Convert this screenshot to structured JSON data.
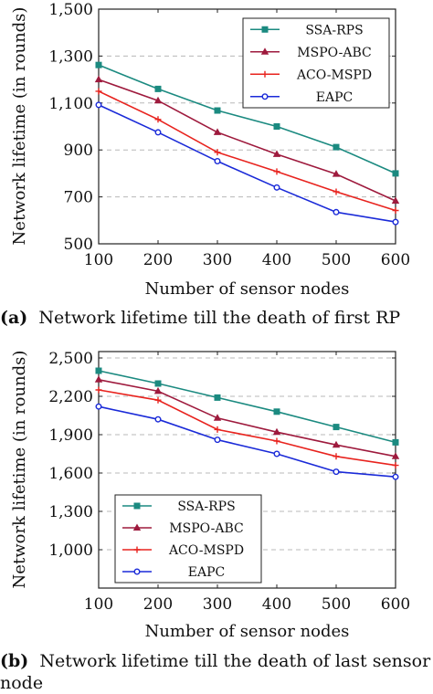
{
  "chart_data": [
    {
      "type": "line",
      "xlabel": "Number of sensor nodes",
      "ylabel": "Network lifetime (in rounds)",
      "x": [
        100,
        200,
        300,
        400,
        500,
        600
      ],
      "xticks": [
        "100",
        "200",
        "300",
        "400",
        "500",
        "600"
      ],
      "yticks": [
        {
          "value": 500,
          "label": "500"
        },
        {
          "value": 700,
          "label": "700"
        },
        {
          "value": 900,
          "label": "900"
        },
        {
          "value": 1100,
          "label": "1,100"
        },
        {
          "value": 1300,
          "label": "1,300"
        },
        {
          "value": 1500,
          "label": "1,500"
        }
      ],
      "xlim": [
        100,
        600
      ],
      "ylim": [
        500,
        1500
      ],
      "grid": "horizontal dashed",
      "legend_position": "top-right",
      "series": [
        {
          "name": "SSA-RPS",
          "color": "#1b8a80",
          "marker": "square",
          "values": [
            1262,
            1160,
            1068,
            1000,
            912,
            800
          ]
        },
        {
          "name": "MSPO-ABC",
          "color": "#9e1a3d",
          "marker": "triangle",
          "values": [
            1200,
            1110,
            975,
            882,
            797,
            683
          ]
        },
        {
          "name": "ACO-MSPD",
          "color": "#e8231e",
          "marker": "plus",
          "values": [
            1150,
            1030,
            890,
            808,
            722,
            642
          ]
        },
        {
          "name": "EAPC",
          "color": "#1a2ad8",
          "marker": "circle",
          "values": [
            1092,
            975,
            852,
            740,
            635,
            593
          ]
        }
      ],
      "caption_label": "(a)",
      "caption_text": "Network lifetime till the death of first RP"
    },
    {
      "type": "line",
      "xlabel": "Number of sensor nodes",
      "ylabel": "Network lifetime (in rounds)",
      "x": [
        100,
        200,
        300,
        400,
        500,
        600
      ],
      "xticks": [
        "100",
        "200",
        "300",
        "400",
        "500",
        "600"
      ],
      "yticks": [
        {
          "value": 1000,
          "label": "1,000"
        },
        {
          "value": 1300,
          "label": "1,300"
        },
        {
          "value": 1600,
          "label": "1,600"
        },
        {
          "value": 1900,
          "label": "1,900"
        },
        {
          "value": 2200,
          "label": "2,200"
        },
        {
          "value": 2500,
          "label": "2,500"
        }
      ],
      "xlim": [
        100,
        600
      ],
      "ylim": [
        700,
        2550
      ],
      "grid": "horizontal dashed",
      "legend_position": "bottom-left",
      "series": [
        {
          "name": "SSA-RPS",
          "color": "#1b8a80",
          "marker": "square",
          "values": [
            2400,
            2300,
            2190,
            2080,
            1960,
            1840
          ]
        },
        {
          "name": "MSPO-ABC",
          "color": "#9e1a3d",
          "marker": "triangle",
          "values": [
            2330,
            2240,
            2030,
            1920,
            1820,
            1730
          ]
        },
        {
          "name": "ACO-MSPD",
          "color": "#e8231e",
          "marker": "plus",
          "values": [
            2250,
            2170,
            1940,
            1850,
            1730,
            1660
          ]
        },
        {
          "name": "EAPC",
          "color": "#1a2ad8",
          "marker": "circle",
          "values": [
            2120,
            2020,
            1860,
            1750,
            1610,
            1570
          ]
        }
      ],
      "caption_label": "(b)",
      "caption_text": "Network lifetime till the death of last sensor node"
    }
  ]
}
